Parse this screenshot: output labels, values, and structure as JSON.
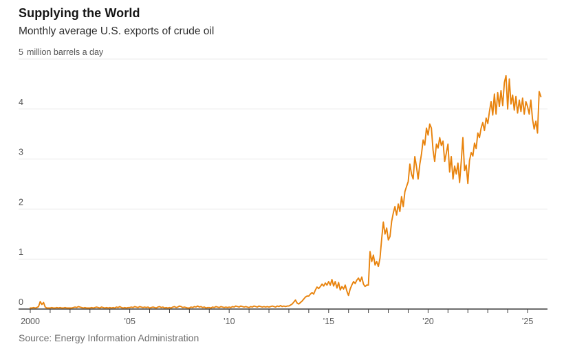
{
  "header": {
    "title": "Supplying the World",
    "subtitle": "Monthly average U.S. exports of crude oil"
  },
  "source_note": "Source: Energy Information Administration",
  "colors": {
    "line": "#e8830d",
    "grid": "#e9e9e9",
    "axis": "#3d3d3d",
    "tick_label": "#555555"
  },
  "chart_data": {
    "type": "line",
    "title": "Supplying the World",
    "subtitle": "Monthly average U.S. exports of crude oil",
    "unit_label": "million barrels a day",
    "ylim": [
      0,
      5
    ],
    "y_ticks": [
      0,
      1,
      2,
      3,
      4,
      5
    ],
    "grid": "horizontal",
    "legend": "none",
    "x_start_year": 2000,
    "frequency": "monthly",
    "x_ticks": [
      {
        "year": 2000,
        "label": "2000"
      },
      {
        "year": 2005,
        "label": "’05"
      },
      {
        "year": 2010,
        "label": "’10"
      },
      {
        "year": 2015,
        "label": "’15"
      },
      {
        "year": 2020,
        "label": "’20"
      },
      {
        "year": 2025,
        "label": "’25"
      }
    ],
    "series": [
      {
        "name": "U.S. crude oil exports (million barrels a day)",
        "color": "#e8830d",
        "start": "2000-01",
        "values": [
          0.02,
          0.02,
          0.03,
          0.02,
          0.03,
          0.05,
          0.15,
          0.09,
          0.13,
          0.04,
          0.02,
          0.02,
          0.02,
          0.03,
          0.02,
          0.02,
          0.03,
          0.02,
          0.03,
          0.02,
          0.02,
          0.03,
          0.02,
          0.02,
          0.02,
          0.02,
          0.03,
          0.04,
          0.03,
          0.05,
          0.04,
          0.03,
          0.02,
          0.03,
          0.02,
          0.02,
          0.02,
          0.03,
          0.02,
          0.03,
          0.04,
          0.03,
          0.02,
          0.04,
          0.03,
          0.02,
          0.03,
          0.02,
          0.03,
          0.02,
          0.03,
          0.02,
          0.04,
          0.03,
          0.05,
          0.03,
          0.02,
          0.03,
          0.02,
          0.03,
          0.03,
          0.04,
          0.03,
          0.05,
          0.04,
          0.03,
          0.05,
          0.04,
          0.03,
          0.04,
          0.03,
          0.04,
          0.02,
          0.03,
          0.04,
          0.03,
          0.02,
          0.04,
          0.05,
          0.03,
          0.04,
          0.02,
          0.03,
          0.02,
          0.03,
          0.02,
          0.04,
          0.05,
          0.03,
          0.04,
          0.06,
          0.05,
          0.03,
          0.04,
          0.03,
          0.02,
          0.02,
          0.04,
          0.03,
          0.05,
          0.04,
          0.06,
          0.04,
          0.05,
          0.03,
          0.04,
          0.02,
          0.03,
          0.03,
          0.02,
          0.04,
          0.03,
          0.05,
          0.04,
          0.03,
          0.05,
          0.04,
          0.03,
          0.04,
          0.03,
          0.04,
          0.03,
          0.05,
          0.04,
          0.06,
          0.05,
          0.04,
          0.06,
          0.05,
          0.04,
          0.05,
          0.04,
          0.03,
          0.05,
          0.04,
          0.06,
          0.05,
          0.04,
          0.06,
          0.05,
          0.04,
          0.05,
          0.04,
          0.05,
          0.04,
          0.05,
          0.06,
          0.05,
          0.04,
          0.06,
          0.05,
          0.07,
          0.05,
          0.06,
          0.05,
          0.06,
          0.06,
          0.08,
          0.1,
          0.14,
          0.18,
          0.12,
          0.1,
          0.13,
          0.16,
          0.2,
          0.24,
          0.26,
          0.26,
          0.3,
          0.33,
          0.3,
          0.38,
          0.44,
          0.41,
          0.45,
          0.5,
          0.46,
          0.52,
          0.48,
          0.55,
          0.48,
          0.59,
          0.46,
          0.55,
          0.42,
          0.53,
          0.38,
          0.45,
          0.4,
          0.48,
          0.36,
          0.27,
          0.4,
          0.48,
          0.55,
          0.51,
          0.58,
          0.62,
          0.55,
          0.64,
          0.5,
          0.45,
          0.48,
          0.48,
          1.15,
          0.95,
          1.08,
          0.88,
          0.95,
          0.85,
          1.02,
          1.4,
          1.74,
          1.5,
          1.62,
          1.38,
          1.45,
          1.75,
          1.92,
          2.05,
          1.88,
          2.1,
          1.95,
          2.25,
          2.05,
          2.35,
          2.45,
          2.55,
          2.9,
          2.7,
          2.6,
          3.05,
          2.85,
          2.6,
          2.9,
          3.1,
          3.38,
          3.28,
          3.62,
          3.48,
          3.7,
          3.62,
          3.18,
          2.95,
          3.3,
          3.22,
          3.43,
          3.27,
          3.36,
          2.95,
          3.12,
          3.3,
          2.74,
          3.05,
          2.6,
          2.86,
          2.7,
          2.92,
          2.53,
          2.95,
          3.43,
          2.77,
          2.88,
          2.51,
          2.97,
          3.13,
          3.06,
          3.32,
          3.21,
          3.52,
          3.43,
          3.62,
          3.73,
          3.57,
          3.82,
          3.71,
          3.95,
          4.15,
          3.88,
          4.3,
          3.9,
          4.33,
          4.05,
          4.37,
          4.07,
          4.53,
          4.67,
          4.0,
          4.6,
          4.1,
          4.28,
          3.98,
          4.25,
          3.92,
          4.18,
          3.95,
          4.22,
          3.9,
          4.15,
          4.05,
          3.9,
          4.18,
          3.8,
          3.6,
          3.76,
          3.52,
          4.35,
          4.25
        ]
      }
    ]
  }
}
